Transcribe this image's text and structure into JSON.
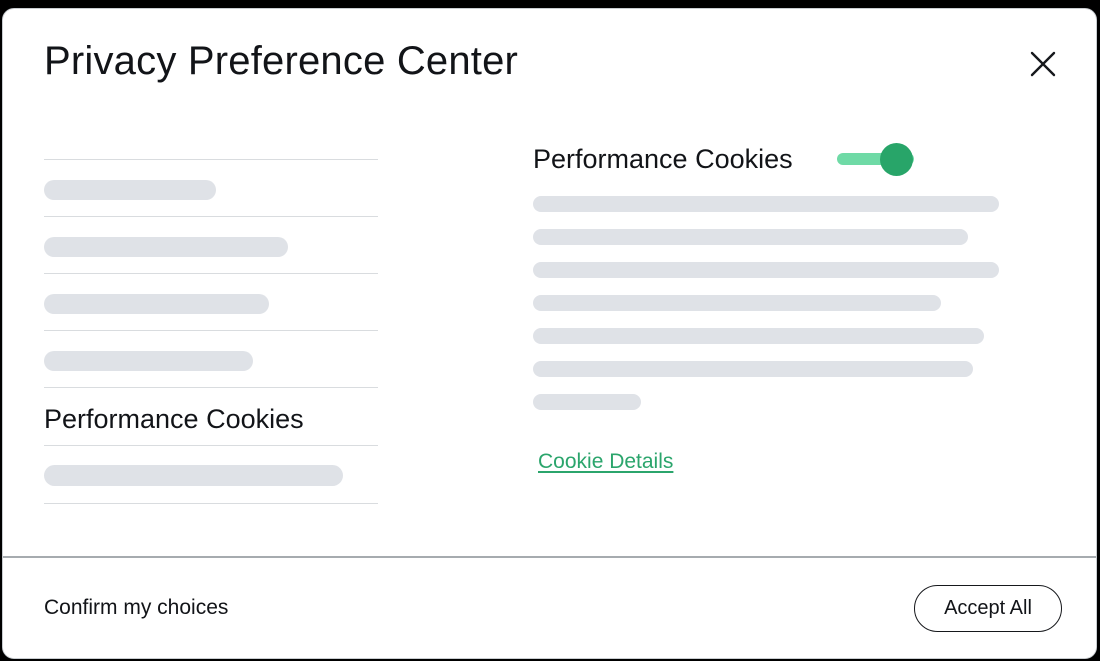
{
  "dialog": {
    "title": "Privacy Preference Center"
  },
  "sidebar": {
    "skeleton_items_before": [
      172,
      244,
      225,
      209
    ],
    "active_item": "Performance Cookies",
    "skeleton_items_after": [
      299
    ]
  },
  "content": {
    "heading": "Performance Cookies",
    "toggle": {
      "label": "Performance Cookies",
      "state": "on"
    },
    "skeleton_lines": [
      466,
      435,
      466,
      408,
      451,
      440,
      108
    ],
    "details_link": "Cookie Details"
  },
  "footer": {
    "confirm_label": "Confirm my choices",
    "accept_label": "Accept All"
  },
  "colors": {
    "accent": "#2ba56c",
    "toggle_track": "#6fdaa6",
    "toggle_knob": "#28a569",
    "skeleton": "#dfe2e7",
    "divider": "#d9dcdf",
    "footer_divider": "#a6abaf",
    "backdrop": "#000000"
  }
}
